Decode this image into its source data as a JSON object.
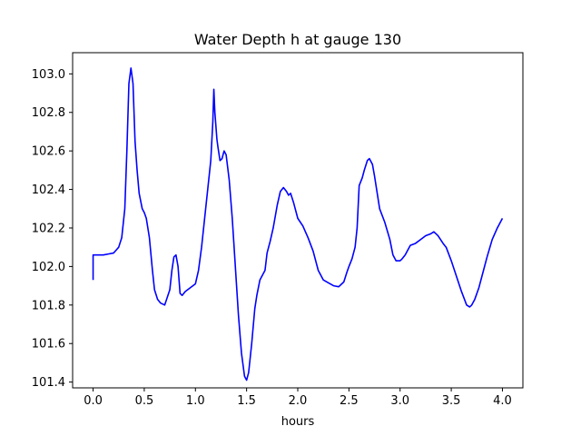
{
  "chart_data": {
    "type": "line",
    "title": "Water Depth h at gauge 130",
    "xlabel": "hours",
    "ylabel": "",
    "xlim": [
      -0.2,
      4.2
    ],
    "ylim": [
      101.37,
      103.11
    ],
    "xticks": [
      0.0,
      0.5,
      1.0,
      1.5,
      2.0,
      2.5,
      3.0,
      3.5,
      4.0
    ],
    "xtick_labels": [
      "0.0",
      "0.5",
      "1.0",
      "1.5",
      "2.0",
      "2.5",
      "3.0",
      "3.5",
      "4.0"
    ],
    "yticks": [
      101.4,
      101.6,
      101.8,
      102.0,
      102.2,
      102.4,
      102.6,
      102.8,
      103.0
    ],
    "ytick_labels": [
      "101.4",
      "101.6",
      "101.8",
      "102.0",
      "102.2",
      "102.4",
      "102.6",
      "102.8",
      "103.0"
    ],
    "grid": false,
    "series": [
      {
        "color": "#0000ff",
        "x": [
          0.0,
          0.0,
          0.05,
          0.1,
          0.15,
          0.2,
          0.25,
          0.28,
          0.31,
          0.33,
          0.35,
          0.37,
          0.39,
          0.41,
          0.43,
          0.45,
          0.48,
          0.5,
          0.52,
          0.55,
          0.58,
          0.6,
          0.63,
          0.66,
          0.7,
          0.75,
          0.77,
          0.79,
          0.81,
          0.83,
          0.85,
          0.87,
          0.9,
          0.95,
          1.0,
          1.03,
          1.06,
          1.09,
          1.12,
          1.15,
          1.17,
          1.18,
          1.19,
          1.21,
          1.22,
          1.24,
          1.26,
          1.28,
          1.3,
          1.33,
          1.36,
          1.39,
          1.42,
          1.45,
          1.48,
          1.5,
          1.52,
          1.55,
          1.58,
          1.6,
          1.63,
          1.66,
          1.68,
          1.7,
          1.73,
          1.76,
          1.8,
          1.83,
          1.86,
          1.89,
          1.91,
          1.93,
          1.96,
          2.0,
          2.05,
          2.1,
          2.15,
          2.2,
          2.25,
          2.3,
          2.35,
          2.4,
          2.45,
          2.48,
          2.5,
          2.53,
          2.56,
          2.58,
          2.6,
          2.63,
          2.65,
          2.68,
          2.7,
          2.73,
          2.75,
          2.8,
          2.85,
          2.9,
          2.93,
          2.96,
          3.0,
          3.02,
          3.05,
          3.08,
          3.1,
          3.15,
          3.2,
          3.25,
          3.3,
          3.33,
          3.37,
          3.42,
          3.45,
          3.5,
          3.55,
          3.6,
          3.65,
          3.68,
          3.7,
          3.73,
          3.77,
          3.8,
          3.85,
          3.9,
          3.95,
          4.0
        ],
        "y": [
          101.93,
          102.06,
          102.06,
          102.06,
          102.065,
          102.07,
          102.1,
          102.15,
          102.3,
          102.6,
          102.95,
          103.03,
          102.95,
          102.65,
          102.5,
          102.38,
          102.3,
          102.28,
          102.25,
          102.15,
          101.98,
          101.88,
          101.83,
          101.81,
          101.8,
          101.88,
          101.98,
          102.05,
          102.06,
          102.0,
          101.86,
          101.85,
          101.87,
          101.89,
          101.91,
          101.98,
          102.1,
          102.25,
          102.4,
          102.55,
          102.75,
          102.92,
          102.8,
          102.66,
          102.62,
          102.55,
          102.56,
          102.6,
          102.58,
          102.45,
          102.25,
          102.0,
          101.75,
          101.55,
          101.43,
          101.41,
          101.45,
          101.6,
          101.78,
          101.85,
          101.93,
          101.96,
          101.98,
          102.07,
          102.13,
          102.2,
          102.32,
          102.39,
          102.41,
          102.39,
          102.37,
          102.38,
          102.33,
          102.25,
          102.21,
          102.15,
          102.08,
          101.98,
          101.93,
          101.915,
          101.9,
          101.895,
          101.92,
          101.97,
          102.0,
          102.04,
          102.1,
          102.2,
          102.42,
          102.46,
          102.5,
          102.55,
          102.56,
          102.53,
          102.47,
          102.3,
          102.23,
          102.14,
          102.06,
          102.03,
          102.03,
          102.04,
          102.06,
          102.09,
          102.11,
          102.12,
          102.14,
          102.16,
          102.17,
          102.18,
          102.16,
          102.12,
          102.1,
          102.03,
          101.95,
          101.87,
          101.8,
          101.79,
          101.8,
          101.83,
          101.89,
          101.95,
          102.05,
          102.14,
          102.2,
          102.25
        ]
      }
    ]
  }
}
